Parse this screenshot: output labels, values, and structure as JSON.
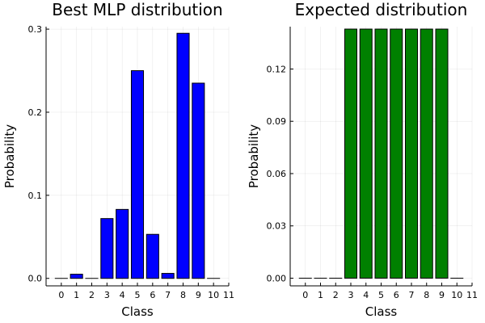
{
  "chart_data": [
    {
      "type": "bar",
      "title": "Best MLP distribution",
      "xlabel": "Class",
      "ylabel": "Probability",
      "bar_color": "#0000ff",
      "xticks": [
        "0",
        "1",
        "2",
        "3",
        "4",
        "5",
        "6",
        "7",
        "8",
        "9",
        "10",
        "11"
      ],
      "yticks": [
        "0.0",
        "0.1",
        "0.2",
        "0.3"
      ],
      "ytick_values": [
        0.0,
        0.1,
        0.2,
        0.3
      ],
      "categories": [
        0,
        1,
        2,
        3,
        4,
        5,
        6,
        7,
        8,
        9,
        10
      ],
      "values": [
        0.0,
        0.005,
        0.0,
        0.072,
        0.083,
        0.25,
        0.053,
        0.006,
        0.295,
        0.235,
        0.0
      ],
      "ylim": [
        -0.009,
        0.303
      ],
      "xlim": [
        -1,
        11
      ],
      "grid": true
    },
    {
      "type": "bar",
      "title": "Expected distribution",
      "xlabel": "Class",
      "ylabel": "Probability",
      "bar_color": "#008000",
      "xticks": [
        "0",
        "1",
        "2",
        "3",
        "4",
        "5",
        "6",
        "7",
        "8",
        "9",
        "10",
        "11"
      ],
      "yticks": [
        "0.00",
        "0.03",
        "0.06",
        "0.09",
        "0.12"
      ],
      "ytick_values": [
        0.0,
        0.03,
        0.06,
        0.09,
        0.12
      ],
      "categories": [
        0,
        1,
        2,
        3,
        4,
        5,
        6,
        7,
        8,
        9,
        10
      ],
      "values": [
        0.0,
        0.0,
        0.0,
        0.1429,
        0.1429,
        0.1429,
        0.1429,
        0.1429,
        0.1429,
        0.1429,
        0.0
      ],
      "ylim": [
        -0.0044,
        0.1443
      ],
      "xlim": [
        -1,
        11
      ],
      "grid": true
    }
  ]
}
